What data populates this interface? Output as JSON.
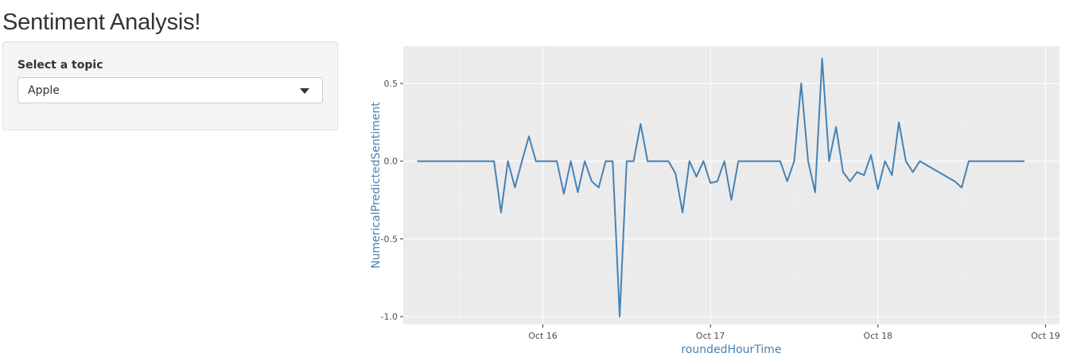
{
  "app": {
    "title": "Sentiment Analysis!"
  },
  "sidebar": {
    "select_label": "Select a topic",
    "select_value": "Apple"
  },
  "chart_data": {
    "type": "line",
    "xlabel": "roundedHourTime",
    "ylabel": "NumericalPredictedSentiment",
    "x_tick_labels": [
      "Oct 16",
      "Oct 17",
      "Oct 18",
      "Oct 19"
    ],
    "y_tick_labels": [
      "-1.0",
      "-0.5",
      "0.0",
      "0.5"
    ],
    "y_ticks": [
      -1.0,
      -0.5,
      0.0,
      0.5
    ],
    "xlim": [
      "2014-10-15T04:00",
      "2014-10-19T02:00"
    ],
    "ylim": [
      -1.05,
      0.74
    ],
    "grid": true,
    "line_color": "#4682b4",
    "series": [
      {
        "x": [
          "2014-10-15T06:00",
          "2014-10-15T17:00",
          "2014-10-15T18:00",
          "2014-10-15T19:00",
          "2014-10-15T20:00",
          "2014-10-15T21:00",
          "2014-10-15T22:00",
          "2014-10-15T23:00",
          "2014-10-16T00:00",
          "2014-10-16T01:00",
          "2014-10-16T02:00",
          "2014-10-16T03:00",
          "2014-10-16T04:00",
          "2014-10-16T05:00",
          "2014-10-16T06:00",
          "2014-10-16T07:00",
          "2014-10-16T08:00",
          "2014-10-16T09:00",
          "2014-10-16T10:00",
          "2014-10-16T11:00",
          "2014-10-16T12:00",
          "2014-10-16T13:00",
          "2014-10-16T14:00",
          "2014-10-16T15:00",
          "2014-10-16T16:00",
          "2014-10-16T17:00",
          "2014-10-16T18:00",
          "2014-10-16T19:00",
          "2014-10-16T20:00",
          "2014-10-16T21:00",
          "2014-10-16T22:00",
          "2014-10-16T23:00",
          "2014-10-17T00:00",
          "2014-10-17T01:00",
          "2014-10-17T02:00",
          "2014-10-17T03:00",
          "2014-10-17T04:00",
          "2014-10-17T05:00",
          "2014-10-17T06:00",
          "2014-10-17T07:00",
          "2014-10-17T08:00",
          "2014-10-17T09:00",
          "2014-10-17T10:00",
          "2014-10-17T11:00",
          "2014-10-17T12:00",
          "2014-10-17T13:00",
          "2014-10-17T14:00",
          "2014-10-17T15:00",
          "2014-10-17T16:00",
          "2014-10-17T17:00",
          "2014-10-17T18:00",
          "2014-10-17T19:00",
          "2014-10-17T20:00",
          "2014-10-17T21:00",
          "2014-10-17T22:00",
          "2014-10-17T23:00",
          "2014-10-18T00:00",
          "2014-10-18T01:00",
          "2014-10-18T02:00",
          "2014-10-18T03:00",
          "2014-10-18T04:00",
          "2014-10-18T05:00",
          "2014-10-18T06:00",
          "2014-10-18T11:00",
          "2014-10-18T12:00",
          "2014-10-18T13:00",
          "2014-10-18T14:00",
          "2014-10-18T15:00",
          "2014-10-18T16:00",
          "2014-10-18T17:00",
          "2014-10-18T18:00",
          "2014-10-18T19:00",
          "2014-10-18T20:00",
          "2014-10-18T21:00"
        ],
        "values": [
          0.0,
          0.0,
          -0.33,
          0.0,
          -0.17,
          0.0,
          0.16,
          0.0,
          0.0,
          0.0,
          0.0,
          -0.21,
          0.0,
          -0.2,
          0.0,
          -0.13,
          -0.17,
          0.0,
          0.0,
          -1.0,
          0.0,
          0.0,
          0.24,
          0.0,
          0.0,
          0.0,
          0.0,
          -0.08,
          -0.33,
          0.0,
          -0.1,
          0.0,
          -0.14,
          -0.13,
          0.0,
          -0.25,
          0.0,
          0.0,
          0.0,
          0.0,
          0.0,
          0.0,
          0.0,
          -0.13,
          0.0,
          0.5,
          0.0,
          -0.2,
          0.66,
          0.0,
          0.22,
          -0.07,
          -0.13,
          -0.07,
          -0.09,
          0.04,
          -0.18,
          0.0,
          -0.09,
          0.25,
          0.0,
          -0.07,
          0.0,
          -0.13,
          -0.17,
          0.0,
          0.0,
          0.0,
          0.0,
          0.0,
          0.0,
          0.0,
          0.0,
          0.0
        ]
      }
    ]
  }
}
